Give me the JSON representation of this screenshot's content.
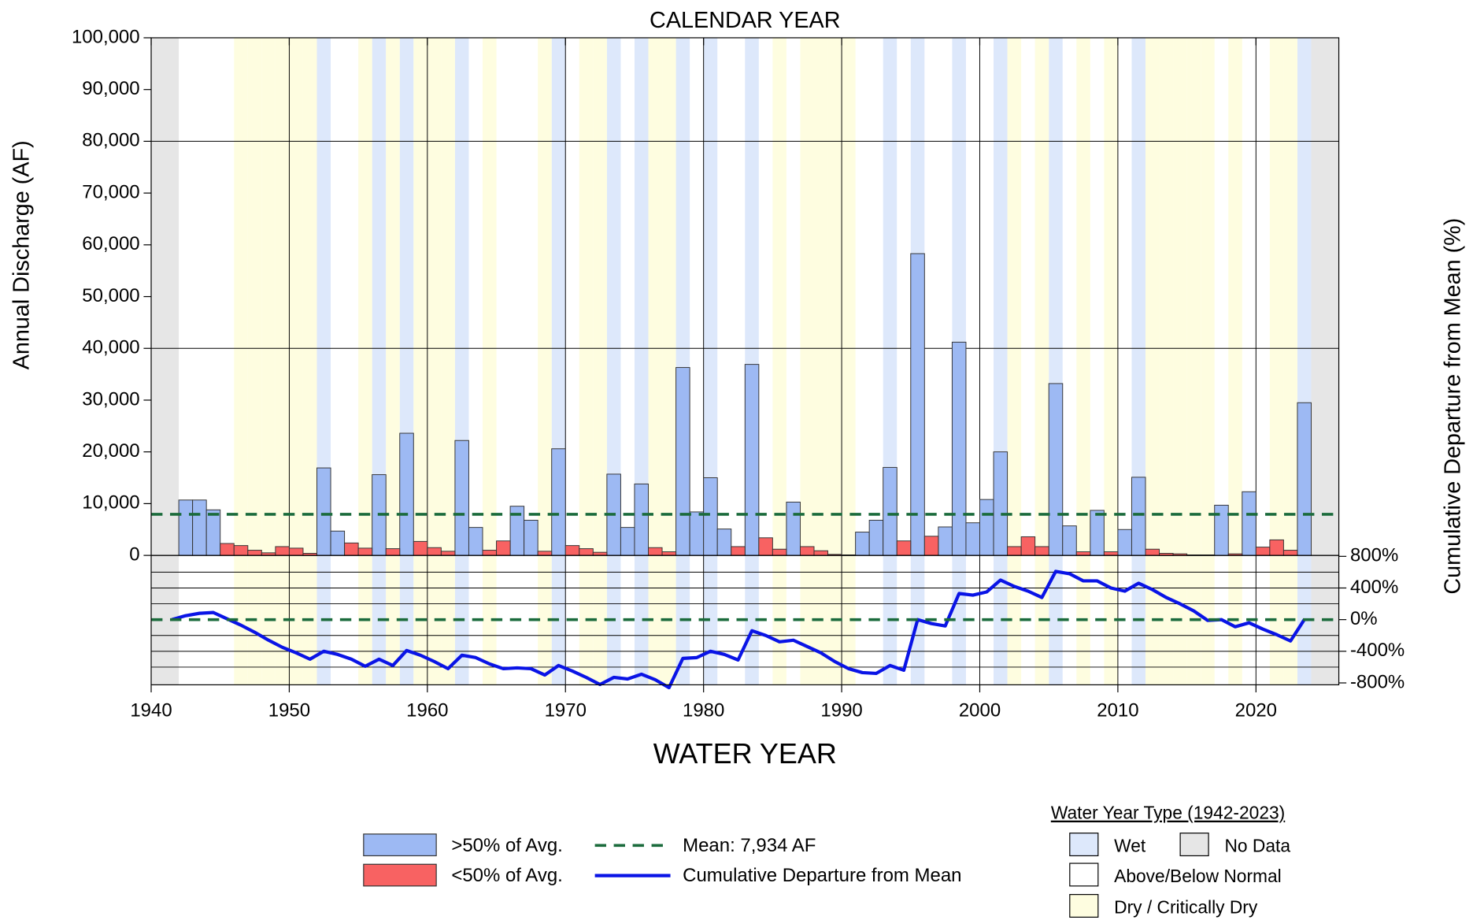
{
  "chart_data": {
    "type": "bar",
    "title": "CALENDAR YEAR",
    "xlabel": "WATER YEAR",
    "ylabel": "Annual Discharge (AF)",
    "y2label": "Cumulative Departure from Mean (%)",
    "x": [
      1942,
      1943,
      1944,
      1945,
      1946,
      1947,
      1948,
      1949,
      1950,
      1951,
      1952,
      1953,
      1954,
      1955,
      1956,
      1957,
      1958,
      1959,
      1960,
      1961,
      1962,
      1963,
      1964,
      1965,
      1966,
      1967,
      1968,
      1969,
      1970,
      1971,
      1972,
      1973,
      1974,
      1975,
      1976,
      1977,
      1978,
      1979,
      1980,
      1981,
      1982,
      1983,
      1984,
      1985,
      1986,
      1987,
      1988,
      1989,
      1990,
      1991,
      1992,
      1993,
      1994,
      1995,
      1996,
      1997,
      1998,
      1999,
      2000,
      2001,
      2002,
      2003,
      2004,
      2005,
      2006,
      2007,
      2008,
      2009,
      2010,
      2011,
      2012,
      2013,
      2014,
      2015,
      2016,
      2017,
      2018,
      2019,
      2020,
      2021,
      2022,
      2023
    ],
    "series": [
      {
        "name": ">50% of Avg.",
        "color": "#9db9f3",
        "values": [
          10700,
          10700,
          8800,
          null,
          null,
          null,
          null,
          null,
          null,
          null,
          16900,
          4700,
          null,
          null,
          15600,
          null,
          23600,
          null,
          null,
          null,
          22200,
          5400,
          null,
          null,
          9500,
          6800,
          null,
          20600,
          null,
          null,
          null,
          15700,
          5400,
          13800,
          null,
          null,
          36300,
          8400,
          15000,
          5100,
          null,
          36900,
          null,
          null,
          10300,
          null,
          null,
          null,
          null,
          4500,
          6800,
          17000,
          null,
          58300,
          null,
          5500,
          41200,
          6300,
          10800,
          20000,
          null,
          null,
          null,
          33200,
          5700,
          null,
          8700,
          null,
          5000,
          15100,
          null,
          null,
          null,
          null,
          null,
          9700,
          null,
          12300,
          null,
          null,
          null,
          29500
        ]
      },
      {
        "name": "<50% of Avg.",
        "color": "#f86262",
        "values": [
          null,
          null,
          null,
          2300,
          1900,
          1000,
          500,
          1700,
          1400,
          400,
          null,
          null,
          2400,
          1400,
          null,
          1300,
          null,
          2700,
          1500,
          800,
          null,
          null,
          1000,
          2800,
          null,
          null,
          800,
          null,
          1900,
          1300,
          600,
          null,
          null,
          null,
          1500,
          700,
          null,
          null,
          null,
          null,
          1700,
          null,
          3400,
          1200,
          null,
          1700,
          900,
          200,
          100,
          null,
          null,
          null,
          2800,
          null,
          3700,
          null,
          null,
          null,
          null,
          null,
          1700,
          3600,
          1700,
          null,
          null,
          700,
          null,
          700,
          null,
          null,
          1200,
          400,
          300,
          100,
          100,
          null,
          300,
          null,
          1600,
          3000,
          1000,
          null
        ]
      },
      {
        "name": "Cumulative Departure from Mean",
        "type": "line",
        "axis": "y2",
        "color": "#0a14e6",
        "x": [
          1941.5,
          1942.5,
          1943.5,
          1944.5,
          1945.5,
          1946.5,
          1947.5,
          1948.5,
          1949.5,
          1950.5,
          1951.5,
          1952.5,
          1953.5,
          1954.5,
          1955.5,
          1956.5,
          1957.5,
          1958.5,
          1959.5,
          1960.5,
          1961.5,
          1962.5,
          1963.5,
          1964.5,
          1965.5,
          1966.5,
          1967.5,
          1968.5,
          1969.5,
          1970.5,
          1971.5,
          1972.5,
          1973.5,
          1974.5,
          1975.5,
          1976.5,
          1977.5,
          1978.5,
          1979.5,
          1980.5,
          1981.5,
          1982.5,
          1983.5,
          1984.5,
          1985.5,
          1986.5,
          1987.5,
          1988.5,
          1989.5,
          1990.5,
          1991.5,
          1992.5,
          1993.5,
          1994.5,
          1995.5,
          1996.5,
          1997.5,
          1998.5,
          1999.5,
          2000.5,
          2001.5,
          2002.5,
          2003.5,
          2004.5,
          2005.5,
          2006.5,
          2007.5,
          2008.5,
          2009.5,
          2010.5,
          2011.5,
          2012.5,
          2013.5,
          2014.5,
          2015.5,
          2016.5,
          2017.5,
          2018.5,
          2019.5,
          2020.5,
          2021.5,
          2022.5,
          2023.5
        ],
        "values": [
          0,
          50,
          80,
          90,
          10,
          -70,
          -160,
          -260,
          -350,
          -420,
          -500,
          -400,
          -440,
          -500,
          -590,
          -500,
          -580,
          -390,
          -450,
          -530,
          -620,
          -450,
          -480,
          -560,
          -620,
          -610,
          -620,
          -700,
          -580,
          -650,
          -730,
          -820,
          -730,
          -750,
          -690,
          -760,
          -860,
          -490,
          -480,
          -400,
          -440,
          -510,
          -140,
          -200,
          -280,
          -260,
          -340,
          -420,
          -530,
          -620,
          -670,
          -680,
          -580,
          -640,
          0,
          -50,
          -80,
          330,
          310,
          350,
          500,
          420,
          360,
          280,
          610,
          580,
          490,
          490,
          400,
          360,
          460,
          380,
          280,
          200,
          110,
          -10,
          0,
          -90,
          -40,
          -120,
          -190,
          -270,
          0
        ]
      }
    ],
    "mean": {
      "label": "Mean: 7,934 AF",
      "value": 7934,
      "y2value": 0,
      "color": "#1b6b3c"
    },
    "xlim": [
      1940,
      2026
    ],
    "xticks": [
      1940,
      1950,
      1960,
      1970,
      1980,
      1990,
      2000,
      2010,
      2020
    ],
    "ylim": [
      0,
      100000
    ],
    "yticks": [
      0,
      {
        "value": 10000,
        "label": "10,000"
      },
      {
        "value": 20000,
        "label": "20,000"
      },
      {
        "value": 30000,
        "label": "30,000"
      },
      {
        "value": 40000,
        "label": "40,000"
      },
      {
        "value": 50000,
        "label": "50,000"
      },
      {
        "value": 60000,
        "label": "60,000"
      },
      {
        "value": 70000,
        "label": "70,000"
      },
      {
        "value": 80000,
        "label": "80,000"
      },
      {
        "value": 90000,
        "label": "90,000"
      },
      {
        "value": 100000,
        "label": "100,000"
      }
    ],
    "ygrid": [
      40000,
      80000
    ],
    "y2lim": [
      -800,
      800
    ],
    "y2ticks": [
      {
        "value": 800,
        "label": "800%"
      },
      {
        "value": 400,
        "label": "400%"
      },
      {
        "value": 0,
        "label": "0%"
      },
      {
        "value": -400,
        "label": "-400%"
      },
      {
        "value": -800,
        "label": "-800%"
      }
    ],
    "y2grid": [
      600,
      400,
      200,
      -200,
      -400,
      -600
    ],
    "water_year_types": {
      "title": "Water Year Type (1942-2023)",
      "types": [
        {
          "name": "Wet",
          "color": "#dde8fb",
          "years": [
            1952,
            1956,
            1958,
            1962,
            1969,
            1973,
            1975,
            1978,
            1980,
            1983,
            1993,
            1995,
            1998,
            2001,
            2005,
            2011,
            2023
          ]
        },
        {
          "name": "No Data",
          "color": "#e6e6e6",
          "years": [
            1940,
            1941,
            2024,
            2025
          ]
        },
        {
          "name": "Above/Below Normal",
          "color": "#ffffff",
          "years": []
        },
        {
          "name": "Dry / Critically Dry",
          "color": "#fefde0",
          "years": [
            1946,
            1947,
            1948,
            1949,
            1950,
            1951,
            1955,
            1957,
            1959,
            1960,
            1961,
            1964,
            1968,
            1971,
            1972,
            1976,
            1977,
            1985,
            1987,
            1988,
            1989,
            1990,
            2002,
            2004,
            2007,
            2009,
            2012,
            2013,
            2014,
            2015,
            2016,
            2018,
            2021,
            2022
          ]
        }
      ]
    }
  }
}
